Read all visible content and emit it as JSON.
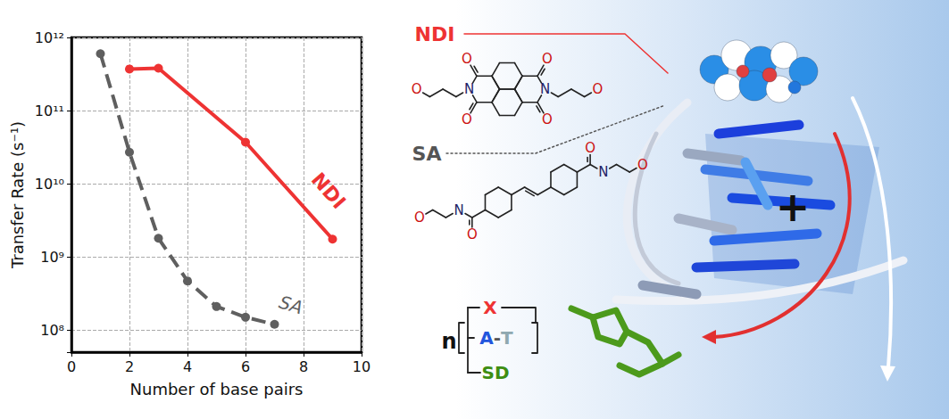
{
  "chart_data": {
    "type": "line",
    "xlabel": "Number of base pairs",
    "ylabel": "Transfer Rate (s⁻¹)",
    "xlim": [
      0,
      10
    ],
    "xticks": [
      0,
      2,
      4,
      6,
      8,
      10
    ],
    "ylim": [
      50000000,
      1000000000000
    ],
    "yticks": [
      {
        "value": 100000000,
        "label": "10⁸"
      },
      {
        "value": 1000000000,
        "label": "10⁹"
      },
      {
        "value": 10000000000,
        "label": "10¹⁰"
      },
      {
        "value": 100000000000,
        "label": "10¹¹"
      },
      {
        "value": 1000000000000,
        "label": "10¹²"
      }
    ],
    "log": "y",
    "grid": true,
    "series": [
      {
        "name": "SA",
        "color": "#5f5f5f",
        "line_style": "dashed",
        "marker": "circle",
        "x": [
          1,
          2,
          3,
          4,
          5,
          6,
          7
        ],
        "values": [
          600000000000,
          27000000000,
          1800000000,
          470000000,
          210000000,
          150000000,
          120000000
        ]
      },
      {
        "name": "NDI",
        "color": "#ee3333",
        "line_style": "solid",
        "marker": "circle",
        "x": [
          2,
          3,
          6,
          9
        ],
        "values": [
          370000000000,
          380000000000,
          37000000000,
          1750000000
        ]
      }
    ]
  },
  "illustration": {
    "ndi_label": "NDI",
    "sa_label": "SA",
    "atoms": {
      "oxygen": "O",
      "nitrogen": "N"
    },
    "charge": "+",
    "scheme": {
      "repeat": "n",
      "unit": "X",
      "pair": "A-T",
      "donor": "SD"
    }
  }
}
